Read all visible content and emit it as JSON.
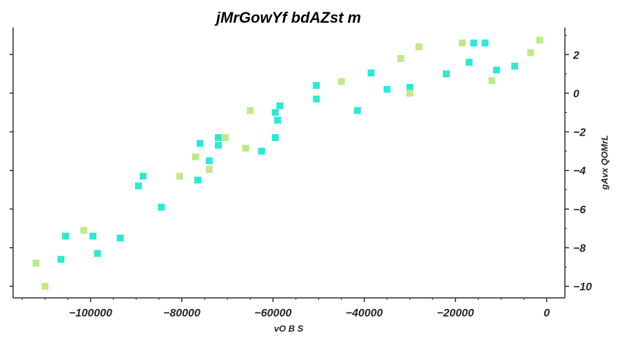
{
  "chart_data": {
    "type": "scatter",
    "title": "jMrGowYf bdAZst m",
    "xlabel": "vO B S",
    "ylabel": "gAvx QOMrL",
    "xlim": [
      -117000,
      4000
    ],
    "ylim": [
      -10.6,
      3.4
    ],
    "x_ticks": [
      -100000,
      -80000,
      -60000,
      -40000,
      -20000,
      0
    ],
    "x_tick_labels": [
      "−100000",
      "−80000",
      "−60000",
      "−40000",
      "−20000",
      "0"
    ],
    "y_ticks": [
      2,
      0,
      -2,
      -4,
      -6,
      -8,
      -10
    ],
    "y_tick_labels": [
      "2",
      "0",
      "−2",
      "−4",
      "−6",
      "−8",
      "−10"
    ],
    "grid": false,
    "y_axis_side": "right",
    "series": [
      {
        "color": "#2ee8d6",
        "points": [
          [
            -106500,
            -8.6
          ],
          [
            -105500,
            -7.4
          ],
          [
            -99500,
            -7.4
          ],
          [
            -98500,
            -8.3
          ],
          [
            -93500,
            -7.5
          ],
          [
            -89500,
            -4.8
          ],
          [
            -88500,
            -4.3
          ],
          [
            -84500,
            -5.9
          ],
          [
            -76500,
            -4.5
          ],
          [
            -76000,
            -2.6
          ],
          [
            -74000,
            -3.5
          ],
          [
            -72000,
            -2.3
          ],
          [
            -72000,
            -2.7
          ],
          [
            -62500,
            -3.0
          ],
          [
            -59500,
            -2.3
          ],
          [
            -59500,
            -1.0
          ],
          [
            -59000,
            -1.4
          ],
          [
            -58500,
            -0.65
          ],
          [
            -50500,
            0.4
          ],
          [
            -50500,
            -0.3
          ],
          [
            -41500,
            -0.9
          ],
          [
            -38500,
            1.05
          ],
          [
            -35000,
            0.2
          ],
          [
            -30000,
            0.3
          ],
          [
            -22000,
            1.0
          ],
          [
            -17000,
            1.6
          ],
          [
            -16000,
            2.6
          ],
          [
            -13500,
            2.6
          ],
          [
            -11000,
            1.2
          ],
          [
            -7000,
            1.4
          ]
        ]
      },
      {
        "color": "#bfea88",
        "points": [
          [
            -112000,
            -8.8
          ],
          [
            -110000,
            -10.0
          ],
          [
            -101500,
            -7.1
          ],
          [
            -80500,
            -4.3
          ],
          [
            -77000,
            -3.3
          ],
          [
            -74000,
            -3.95
          ],
          [
            -70500,
            -2.3
          ],
          [
            -66000,
            -2.85
          ],
          [
            -65000,
            -0.9
          ],
          [
            -45000,
            0.6
          ],
          [
            -32000,
            1.8
          ],
          [
            -30000,
            0.0
          ],
          [
            -28000,
            2.4
          ],
          [
            -18500,
            2.6
          ],
          [
            -12000,
            0.65
          ],
          [
            -3500,
            2.1
          ],
          [
            -1500,
            2.75
          ]
        ]
      }
    ]
  }
}
